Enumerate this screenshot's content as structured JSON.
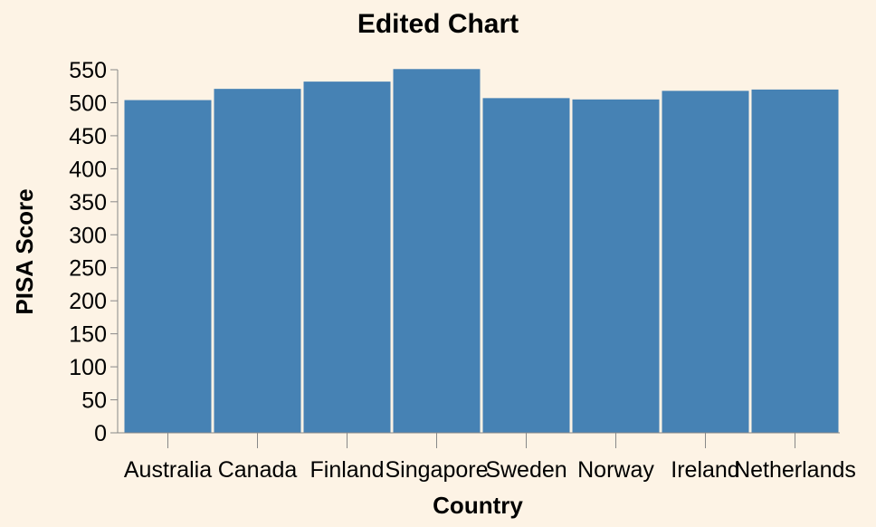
{
  "chart_data": {
    "type": "bar",
    "title": "Edited Chart",
    "xlabel": "Country",
    "ylabel": "PISA Score",
    "categories": [
      "Australia",
      "Canada",
      "Finland",
      "Singapore",
      "Sweden",
      "Norway",
      "Ireland",
      "Netherlands"
    ],
    "values": [
      504,
      521,
      532,
      551,
      507,
      505,
      518,
      520
    ],
    "ylim": [
      0,
      550
    ],
    "yticks": [
      0,
      50,
      100,
      150,
      200,
      250,
      300,
      350,
      400,
      450,
      500,
      550
    ],
    "grid": false,
    "colors": {
      "bar": "#4682b4",
      "background": "#fdf3e5",
      "axis": "#888888"
    }
  }
}
